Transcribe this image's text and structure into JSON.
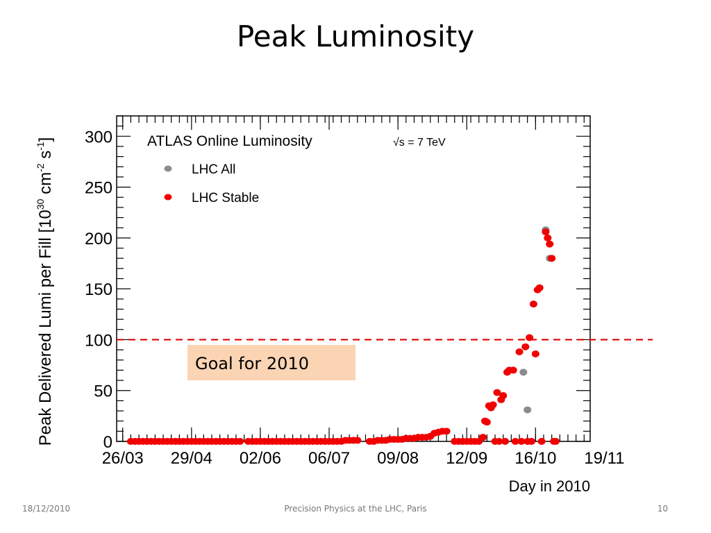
{
  "slide": {
    "title": "Peak Luminosity",
    "footer_date": "18/12/2010",
    "footer_center": "Precision Physics at the LHC, Paris",
    "page_number": "10"
  },
  "chart_data": {
    "type": "scatter",
    "title": "ATLAS Online Luminosity",
    "energy_label": "√s = 7 TeV",
    "xlabel": "Day in 2010",
    "ylabel": "Peak Delivered Lumi per Fill [10^30 cm^-2 s^-1]",
    "ylabel_parts": {
      "main": "Peak Delivered Lumi per Fill [10",
      "exp1": "30",
      "mid": " cm",
      "exp2": "-2",
      "mid2": " s",
      "exp3": "-1",
      "end": "]"
    },
    "xlim": [
      "2010-03-23",
      "2010-11-12"
    ],
    "ylim": [
      0,
      320
    ],
    "x_tick_labels": [
      "26/03",
      "29/04",
      "02/06",
      "06/07",
      "09/08",
      "12/09",
      "16/10",
      "19/11"
    ],
    "x_tick_dates": [
      "2010-03-26",
      "2010-04-29",
      "2010-06-02",
      "2010-07-06",
      "2010-08-09",
      "2010-09-12",
      "2010-10-16",
      "2010-11-19"
    ],
    "y_ticks": [
      0,
      50,
      100,
      150,
      200,
      250,
      300
    ],
    "legend_position": "top-left",
    "reference_line": {
      "y": 100,
      "color": "#e00000",
      "style": "dashed"
    },
    "annotation": {
      "text": "Goal for 2010",
      "background": "#fbd4b4"
    },
    "series": [
      {
        "name": "LHC All",
        "color": "#8c8c8c",
        "points": [
          [
            "2010-10-10",
            68
          ],
          [
            "2010-10-12",
            31
          ],
          [
            "2010-10-21",
            208
          ],
          [
            "2010-10-23",
            180
          ]
        ]
      },
      {
        "name": "LHC Stable",
        "color": "#f00000",
        "points": [
          [
            "2010-03-30",
            0
          ],
          [
            "2010-04-01",
            0
          ],
          [
            "2010-04-03",
            0
          ],
          [
            "2010-04-05",
            0
          ],
          [
            "2010-04-07",
            0
          ],
          [
            "2010-04-09",
            0
          ],
          [
            "2010-04-11",
            0
          ],
          [
            "2010-04-13",
            0
          ],
          [
            "2010-04-15",
            0
          ],
          [
            "2010-04-17",
            0
          ],
          [
            "2010-04-19",
            0
          ],
          [
            "2010-04-21",
            0
          ],
          [
            "2010-04-23",
            0
          ],
          [
            "2010-04-25",
            0
          ],
          [
            "2010-04-27",
            0
          ],
          [
            "2010-04-29",
            0
          ],
          [
            "2010-05-01",
            0
          ],
          [
            "2010-05-03",
            0
          ],
          [
            "2010-05-05",
            0
          ],
          [
            "2010-05-07",
            0
          ],
          [
            "2010-05-09",
            0
          ],
          [
            "2010-05-11",
            0
          ],
          [
            "2010-05-13",
            0
          ],
          [
            "2010-05-15",
            0
          ],
          [
            "2010-05-17",
            0
          ],
          [
            "2010-05-19",
            0
          ],
          [
            "2010-05-21",
            0
          ],
          [
            "2010-05-23",
            0
          ],
          [
            "2010-05-27",
            0
          ],
          [
            "2010-05-29",
            0
          ],
          [
            "2010-05-31",
            0
          ],
          [
            "2010-06-02",
            0
          ],
          [
            "2010-06-04",
            0
          ],
          [
            "2010-06-06",
            0
          ],
          [
            "2010-06-08",
            0
          ],
          [
            "2010-06-10",
            0
          ],
          [
            "2010-06-12",
            0
          ],
          [
            "2010-06-14",
            0
          ],
          [
            "2010-06-16",
            0
          ],
          [
            "2010-06-18",
            0
          ],
          [
            "2010-06-20",
            0
          ],
          [
            "2010-06-22",
            0
          ],
          [
            "2010-06-24",
            0
          ],
          [
            "2010-06-26",
            0
          ],
          [
            "2010-06-28",
            0
          ],
          [
            "2010-06-30",
            0
          ],
          [
            "2010-07-02",
            0
          ],
          [
            "2010-07-04",
            0
          ],
          [
            "2010-07-06",
            0
          ],
          [
            "2010-07-08",
            0
          ],
          [
            "2010-07-10",
            0
          ],
          [
            "2010-07-12",
            0
          ],
          [
            "2010-07-14",
            1
          ],
          [
            "2010-07-16",
            1
          ],
          [
            "2010-07-18",
            1
          ],
          [
            "2010-07-20",
            1
          ],
          [
            "2010-07-26",
            0
          ],
          [
            "2010-07-28",
            0
          ],
          [
            "2010-07-30",
            1
          ],
          [
            "2010-08-01",
            1
          ],
          [
            "2010-08-03",
            1
          ],
          [
            "2010-08-05",
            2
          ],
          [
            "2010-08-07",
            2
          ],
          [
            "2010-08-09",
            2
          ],
          [
            "2010-08-11",
            2
          ],
          [
            "2010-08-13",
            3
          ],
          [
            "2010-08-15",
            3
          ],
          [
            "2010-08-17",
            3
          ],
          [
            "2010-08-19",
            4
          ],
          [
            "2010-08-21",
            4
          ],
          [
            "2010-08-23",
            4
          ],
          [
            "2010-08-25",
            5
          ],
          [
            "2010-08-27",
            8
          ],
          [
            "2010-08-29",
            9
          ],
          [
            "2010-08-31",
            10
          ],
          [
            "2010-09-02",
            10
          ],
          [
            "2010-09-06",
            0
          ],
          [
            "2010-09-08",
            0
          ],
          [
            "2010-09-10",
            0
          ],
          [
            "2010-09-12",
            0
          ],
          [
            "2010-09-14",
            0
          ],
          [
            "2010-09-16",
            0
          ],
          [
            "2010-09-18",
            0
          ],
          [
            "2010-09-20",
            4
          ],
          [
            "2010-09-21",
            20
          ],
          [
            "2010-09-22",
            19
          ],
          [
            "2010-09-23",
            35
          ],
          [
            "2010-09-24",
            33
          ],
          [
            "2010-09-25",
            36
          ],
          [
            "2010-09-26",
            0
          ],
          [
            "2010-09-27",
            48
          ],
          [
            "2010-09-28",
            0
          ],
          [
            "2010-09-29",
            41
          ],
          [
            "2010-09-30",
            45
          ],
          [
            "2010-10-01",
            0
          ],
          [
            "2010-10-02",
            68
          ],
          [
            "2010-10-03",
            70
          ],
          [
            "2010-10-05",
            70
          ],
          [
            "2010-10-06",
            0
          ],
          [
            "2010-10-08",
            88
          ],
          [
            "2010-10-09",
            0
          ],
          [
            "2010-10-11",
            93
          ],
          [
            "2010-10-12",
            0
          ],
          [
            "2010-10-13",
            102
          ],
          [
            "2010-10-14",
            0
          ],
          [
            "2010-10-15",
            135
          ],
          [
            "2010-10-16",
            86
          ],
          [
            "2010-10-17",
            149
          ],
          [
            "2010-10-18",
            151
          ],
          [
            "2010-10-19",
            0
          ],
          [
            "2010-10-21",
            206
          ],
          [
            "2010-10-22",
            200
          ],
          [
            "2010-10-23",
            194
          ],
          [
            "2010-10-24",
            180
          ],
          [
            "2010-10-25",
            0
          ],
          [
            "2010-10-26",
            0
          ]
        ]
      }
    ]
  }
}
